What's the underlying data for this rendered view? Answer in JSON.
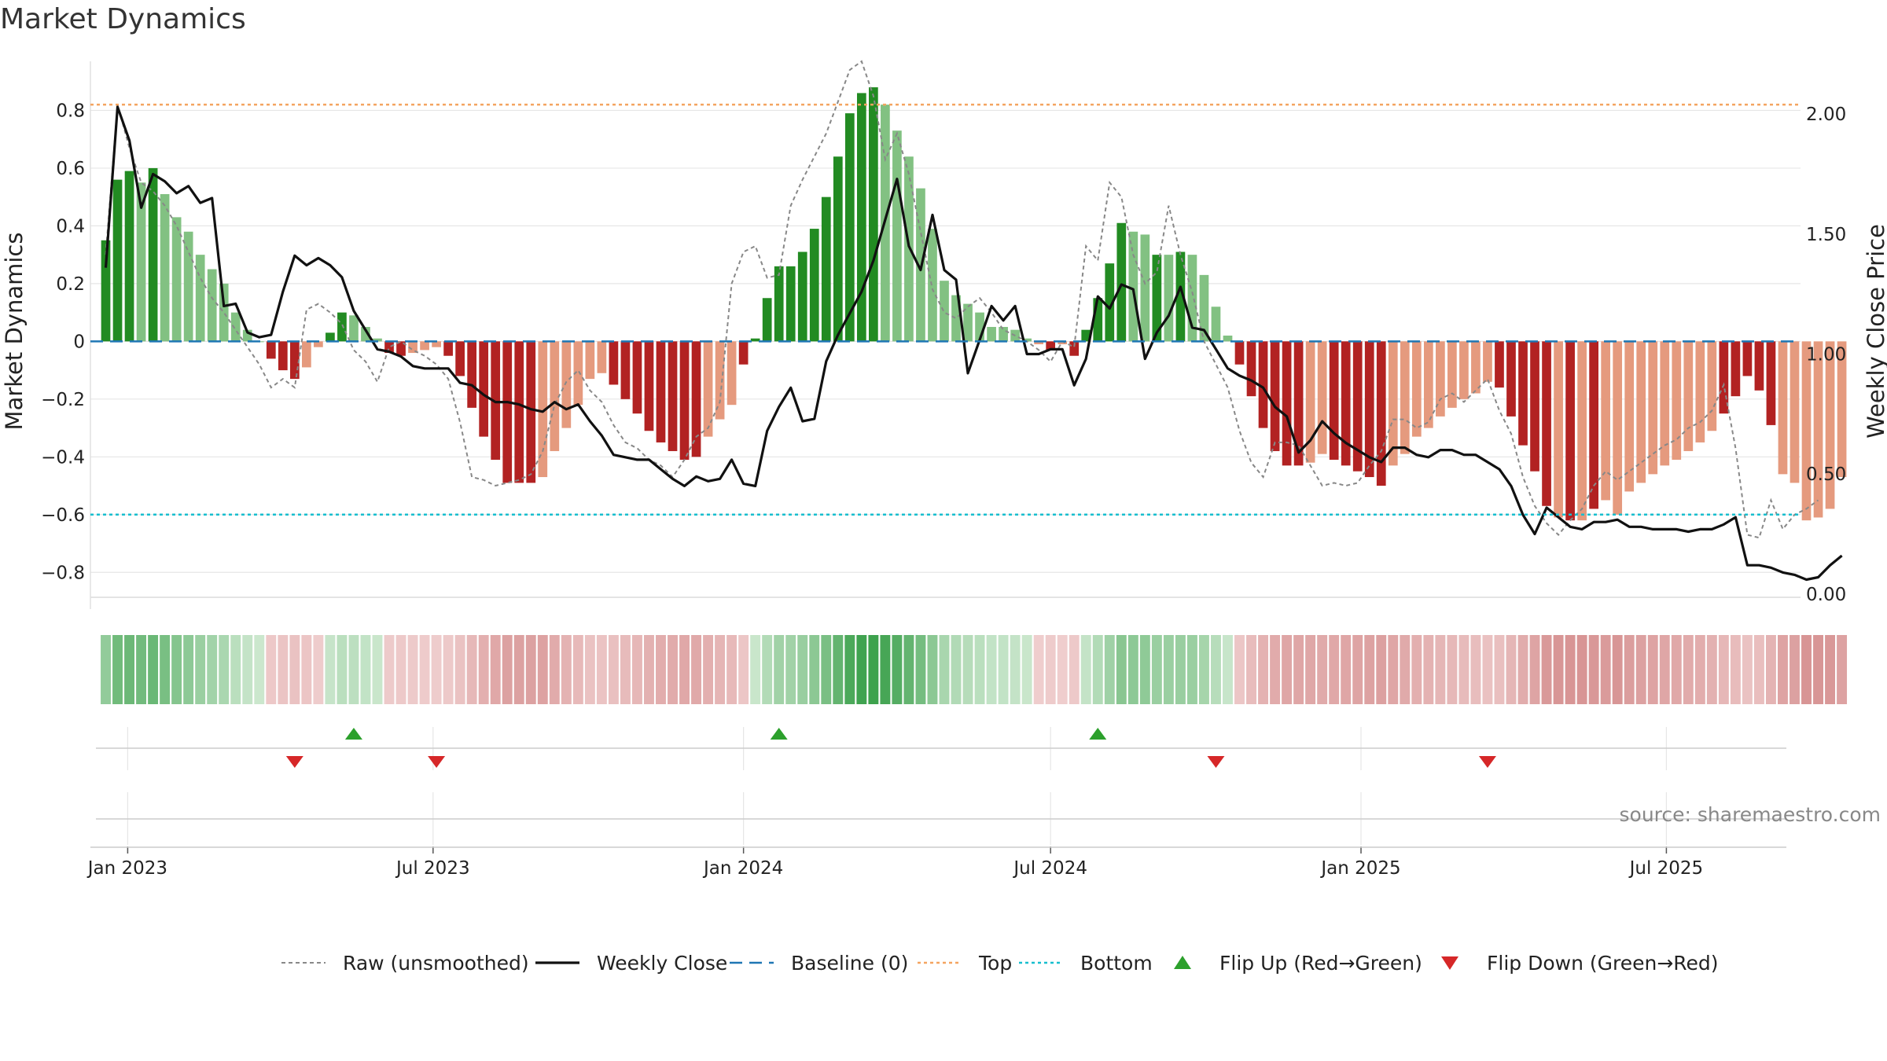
{
  "title": "Market Dynamics",
  "source": "source: sharemaestro.com",
  "colors": {
    "strong_green": "#228b22",
    "light_green": "#82c182",
    "strong_red": "#b22222",
    "light_red": "#e59a7e",
    "raw": "#888888",
    "close": "#111111",
    "baseline": "#1f77b4",
    "top": "#f4a460",
    "bottom": "#17becf",
    "flip_up": "#2ca02c",
    "flip_down": "#d62728"
  },
  "chart_data": {
    "type": "bar",
    "title": "Market Dynamics",
    "ylabel": "Market Dynamics",
    "y2label": "Weekly Close Price",
    "ylim": [
      -0.9,
      0.97
    ],
    "y2lim": [
      -0.03,
      2.22
    ],
    "yticks": [
      "0.8",
      "0.6",
      "0.4",
      "0.2",
      "0",
      "−0.2",
      "−0.4",
      "−0.6",
      "−0.8"
    ],
    "yticks_values": [
      0.8,
      0.6,
      0.4,
      0.2,
      0,
      -0.2,
      -0.4,
      -0.6,
      -0.8
    ],
    "y2ticks": [
      "2.00",
      "1.50",
      "1.00",
      "0.50",
      "0.00"
    ],
    "y2ticks_values": [
      2.0,
      1.5,
      1.0,
      0.5,
      0.0
    ],
    "xticks": [
      {
        "label": "Jan 2023",
        "date": "2023-01-01"
      },
      {
        "label": "Jul 2023",
        "date": "2023-07-01"
      },
      {
        "label": "Jan 2024",
        "date": "2024-01-01"
      },
      {
        "label": "Jul 2024",
        "date": "2024-07-01"
      },
      {
        "label": "Jan 2025",
        "date": "2025-01-01"
      },
      {
        "label": "Jul 2025",
        "date": "2025-07-01"
      }
    ],
    "start_date": "2022-12-19",
    "week_count": 144,
    "top_level": 0.82,
    "bottom_level": -0.6,
    "baseline_level": 0,
    "grid": true,
    "legend_position": "bottom",
    "dynamics": [
      0.35,
      0.56,
      0.59,
      0.55,
      0.6,
      0.51,
      0.43,
      0.38,
      0.3,
      0.25,
      0.2,
      0.1,
      0.04,
      0.0,
      -0.06,
      -0.1,
      -0.13,
      -0.09,
      -0.02,
      0.03,
      0.1,
      0.09,
      0.05,
      0.01,
      -0.04,
      -0.05,
      -0.04,
      -0.03,
      -0.02,
      -0.05,
      -0.12,
      -0.23,
      -0.33,
      -0.41,
      -0.49,
      -0.49,
      -0.49,
      -0.47,
      -0.38,
      -0.3,
      -0.22,
      -0.13,
      -0.11,
      -0.15,
      -0.2,
      -0.25,
      -0.31,
      -0.35,
      -0.38,
      -0.41,
      -0.4,
      -0.33,
      -0.27,
      -0.22,
      -0.08,
      0.01,
      0.15,
      0.26,
      0.26,
      0.31,
      0.39,
      0.5,
      0.64,
      0.79,
      0.86,
      0.88,
      0.82,
      0.73,
      0.64,
      0.53,
      0.39,
      0.21,
      0.16,
      0.13,
      0.1,
      0.05,
      0.05,
      0.04,
      0.01,
      -0.01,
      -0.03,
      -0.01,
      -0.05,
      0.04,
      0.15,
      0.27,
      0.41,
      0.38,
      0.37,
      0.3,
      0.3,
      0.31,
      0.3,
      0.23,
      0.12,
      0.02,
      -0.08,
      -0.19,
      -0.3,
      -0.38,
      -0.43,
      -0.43,
      -0.42,
      -0.39,
      -0.41,
      -0.43,
      -0.45,
      -0.47,
      -0.5,
      -0.43,
      -0.39,
      -0.33,
      -0.3,
      -0.26,
      -0.23,
      -0.2,
      -0.18,
      -0.14,
      -0.16,
      -0.26,
      -0.36,
      -0.45,
      -0.57,
      -0.61,
      -0.62,
      -0.62,
      -0.58,
      -0.55,
      -0.6,
      -0.52,
      -0.49,
      -0.46,
      -0.43,
      -0.41,
      -0.38,
      -0.35,
      -0.31,
      -0.25,
      -0.19,
      -0.12,
      -0.17,
      -0.29,
      -0.46,
      -0.49,
      -0.62,
      -0.61,
      -0.58,
      -0.47
    ],
    "strong": [
      1,
      1,
      1,
      0,
      1,
      0,
      0,
      0,
      0,
      0,
      0,
      0,
      0,
      0,
      1,
      1,
      1,
      0,
      0,
      1,
      1,
      0,
      0,
      0,
      1,
      1,
      0,
      0,
      0,
      1,
      1,
      1,
      1,
      1,
      1,
      1,
      1,
      0,
      0,
      0,
      0,
      0,
      0,
      1,
      1,
      1,
      1,
      1,
      1,
      1,
      1,
      0,
      0,
      0,
      1,
      1,
      1,
      1,
      1,
      1,
      1,
      1,
      1,
      1,
      1,
      1,
      0,
      0,
      0,
      0,
      0,
      0,
      0,
      0,
      0,
      0,
      0,
      0,
      0,
      0,
      1,
      0,
      1,
      1,
      1,
      1,
      1,
      0,
      0,
      1,
      0,
      1,
      0,
      0,
      0,
      0,
      1,
      1,
      1,
      1,
      1,
      1,
      0,
      0,
      1,
      1,
      1,
      1,
      1,
      0,
      0,
      0,
      0,
      0,
      0,
      0,
      0,
      0,
      1,
      1,
      1,
      1,
      1,
      0,
      1,
      0,
      1,
      0,
      0,
      0,
      0,
      0,
      0,
      0,
      0,
      0,
      0,
      1,
      1,
      1,
      1,
      1,
      0,
      0
    ],
    "raw": [
      0.3,
      0.82,
      0.67,
      0.55,
      0.52,
      0.47,
      0.4,
      0.31,
      0.22,
      0.15,
      0.1,
      0.04,
      -0.02,
      -0.08,
      -0.16,
      -0.13,
      -0.16,
      0.11,
      0.13,
      0.1,
      0.06,
      -0.03,
      -0.07,
      -0.14,
      -0.02,
      0.0,
      -0.03,
      -0.05,
      -0.08,
      -0.13,
      -0.28,
      -0.47,
      -0.48,
      -0.5,
      -0.49,
      -0.48,
      -0.46,
      -0.38,
      -0.22,
      -0.14,
      -0.1,
      -0.17,
      -0.21,
      -0.29,
      -0.35,
      -0.37,
      -0.41,
      -0.43,
      -0.47,
      -0.41,
      -0.33,
      -0.3,
      -0.21,
      0.2,
      0.31,
      0.33,
      0.22,
      0.23,
      0.47,
      0.56,
      0.64,
      0.72,
      0.83,
      0.94,
      0.97,
      0.85,
      0.63,
      0.72,
      0.58,
      0.38,
      0.18,
      0.1,
      0.08,
      0.12,
      0.15,
      0.1,
      0.04,
      0.02,
      0.0,
      -0.03,
      -0.07,
      0.0,
      -0.02,
      0.33,
      0.28,
      0.55,
      0.5,
      0.3,
      0.2,
      0.24,
      0.47,
      0.3,
      0.17,
      0.0,
      -0.08,
      -0.16,
      -0.31,
      -0.42,
      -0.47,
      -0.35,
      -0.35,
      -0.36,
      -0.43,
      -0.5,
      -0.49,
      -0.5,
      -0.49,
      -0.43,
      -0.38,
      -0.27,
      -0.27,
      -0.3,
      -0.28,
      -0.2,
      -0.18,
      -0.21,
      -0.17,
      -0.13,
      -0.24,
      -0.32,
      -0.47,
      -0.57,
      -0.63,
      -0.67,
      -0.62,
      -0.58,
      -0.5,
      -0.45,
      -0.48,
      -0.45,
      -0.42,
      -0.39,
      -0.36,
      -0.34,
      -0.3,
      -0.28,
      -0.24,
      -0.15,
      -0.37,
      -0.67,
      -0.68,
      -0.55,
      -0.65,
      -0.6,
      -0.58,
      -0.55
    ],
    "close": [
      1.36,
      2.03,
      1.89,
      1.61,
      1.75,
      1.72,
      1.67,
      1.7,
      1.63,
      1.65,
      1.2,
      1.21,
      1.09,
      1.07,
      1.08,
      1.26,
      1.41,
      1.37,
      1.4,
      1.37,
      1.32,
      1.18,
      1.1,
      1.02,
      1.01,
      0.99,
      0.95,
      0.94,
      0.94,
      0.94,
      0.88,
      0.87,
      0.83,
      0.8,
      0.8,
      0.79,
      0.77,
      0.76,
      0.8,
      0.77,
      0.79,
      0.72,
      0.66,
      0.58,
      0.57,
      0.56,
      0.56,
      0.52,
      0.48,
      0.45,
      0.49,
      0.47,
      0.48,
      0.56,
      0.46,
      0.45,
      0.68,
      0.78,
      0.86,
      0.72,
      0.73,
      0.97,
      1.08,
      1.17,
      1.26,
      1.39,
      1.56,
      1.73,
      1.45,
      1.35,
      1.58,
      1.35,
      1.31,
      0.92,
      1.06,
      1.2,
      1.14,
      1.2,
      1.0,
      1.0,
      1.02,
      1.02,
      0.87,
      0.98,
      1.24,
      1.19,
      1.29,
      1.27,
      0.98,
      1.09,
      1.16,
      1.28,
      1.11,
      1.1,
      1.02,
      0.94,
      0.91,
      0.89,
      0.86,
      0.78,
      0.74,
      0.59,
      0.64,
      0.72,
      0.67,
      0.63,
      0.6,
      0.57,
      0.55,
      0.61,
      0.61,
      0.58,
      0.57,
      0.6,
      0.6,
      0.58,
      0.58,
      0.55,
      0.52,
      0.45,
      0.33,
      0.25,
      0.36,
      0.32,
      0.28,
      0.27,
      0.3,
      0.3,
      0.31,
      0.28,
      0.28,
      0.27,
      0.27,
      0.27,
      0.26,
      0.27,
      0.27,
      0.29,
      0.32,
      0.12,
      0.12,
      0.11,
      0.09,
      0.08,
      0.06,
      0.07,
      0.12,
      0.16
    ],
    "flip_up_weeks": [
      21,
      57,
      84
    ],
    "flip_down_weeks": [
      16,
      28,
      94,
      117
    ],
    "legend": [
      {
        "label": "Raw (unsmoothed)",
        "style": "dotted"
      },
      {
        "label": "Weekly Close",
        "style": "solid"
      },
      {
        "label": "Baseline (0)",
        "style": "dashed"
      },
      {
        "label": "Top",
        "style": "dotted"
      },
      {
        "label": "Bottom",
        "style": "dotted"
      },
      {
        "label": "Flip Up (Red→Green)",
        "style": "marker-up"
      },
      {
        "label": "Flip Down (Green→Red)",
        "style": "marker-down"
      }
    ]
  }
}
